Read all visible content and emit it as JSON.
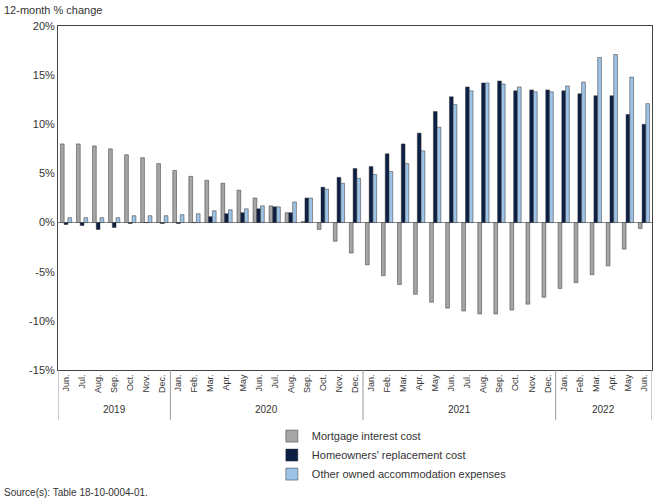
{
  "chart_data": {
    "type": "bar",
    "y_label": "12-month % change",
    "source": "Source(s): Table 18-10-0004-01.",
    "categories": [
      "Jun.",
      "Jul.",
      "Aug.",
      "Sep.",
      "Oct.",
      "Nov.",
      "Dec.",
      "Jan.",
      "Feb.",
      "Mar.",
      "Apr.",
      "May",
      "Jun.",
      "Jul.",
      "Aug.",
      "Sep.",
      "Oct.",
      "Nov.",
      "Dec.",
      "Jan.",
      "Feb.",
      "Mar.",
      "Apr.",
      "May",
      "Jun.",
      "Jul.",
      "Aug.",
      "Sep.",
      "Oct.",
      "Nov.",
      "Dec.",
      "Jan.",
      "Feb.",
      "Mar.",
      "Apr.",
      "May",
      "Jun."
    ],
    "category_years": [
      "2019",
      "2019",
      "2019",
      "2019",
      "2019",
      "2019",
      "2019",
      "2020",
      "2020",
      "2020",
      "2020",
      "2020",
      "2020",
      "2020",
      "2020",
      "2020",
      "2020",
      "2020",
      "2020",
      "2021",
      "2021",
      "2021",
      "2021",
      "2021",
      "2021",
      "2021",
      "2021",
      "2021",
      "2021",
      "2021",
      "2021",
      "2022",
      "2022",
      "2022",
      "2022",
      "2022",
      "2022"
    ],
    "series": [
      {
        "name": "Mortgage interest cost",
        "color": "#a6a6a6",
        "values": [
          8.0,
          8.0,
          7.8,
          7.5,
          6.9,
          6.6,
          6.0,
          5.3,
          4.7,
          4.3,
          4.0,
          3.3,
          2.5,
          1.7,
          1.0,
          0.1,
          -0.7,
          -1.9,
          -3.1,
          -4.3,
          -5.4,
          -6.3,
          -7.3,
          -8.1,
          -8.7,
          -9.0,
          -9.3,
          -9.3,
          -8.9,
          -8.3,
          -7.6,
          -6.7,
          -6.1,
          -5.3,
          -4.4,
          -2.7,
          -0.6
        ]
      },
      {
        "name": "Homeowners' replacement cost",
        "color": "#0c1f45",
        "values": [
          -0.2,
          -0.3,
          -0.7,
          -0.5,
          -0.1,
          0.0,
          -0.1,
          -0.1,
          0.0,
          0.6,
          0.9,
          1.0,
          1.4,
          1.6,
          1.0,
          2.5,
          3.6,
          4.6,
          5.5,
          5.7,
          7.0,
          8.0,
          9.1,
          11.3,
          12.8,
          13.8,
          14.2,
          14.4,
          13.4,
          13.5,
          13.5,
          13.4,
          13.1,
          12.9,
          12.9,
          11.0,
          10.0
        ]
      },
      {
        "name": "Other owned accommodation expenses",
        "color": "#9dc3e6",
        "values": [
          0.5,
          0.5,
          0.5,
          0.5,
          0.7,
          0.7,
          0.7,
          0.8,
          0.9,
          1.2,
          1.3,
          1.4,
          1.7,
          1.6,
          2.1,
          2.5,
          3.4,
          4.0,
          4.5,
          4.9,
          5.2,
          6.0,
          7.3,
          9.7,
          12.0,
          13.4,
          14.2,
          14.1,
          13.8,
          13.3,
          13.3,
          13.9,
          14.3,
          16.8,
          17.1,
          14.8,
          12.1
        ]
      }
    ],
    "ylim": [
      -15,
      20
    ],
    "yticks": [
      {
        "value": -15,
        "label": "-15%"
      },
      {
        "value": -10,
        "label": "-10%"
      },
      {
        "value": -5,
        "label": "-5%"
      },
      {
        "value": 0,
        "label": "0%"
      },
      {
        "value": 5,
        "label": "5%"
      },
      {
        "value": 10,
        "label": "10%"
      },
      {
        "value": 15,
        "label": "15%"
      },
      {
        "value": 20,
        "label": "20%"
      }
    ],
    "grid": false,
    "legend": "bottom"
  }
}
